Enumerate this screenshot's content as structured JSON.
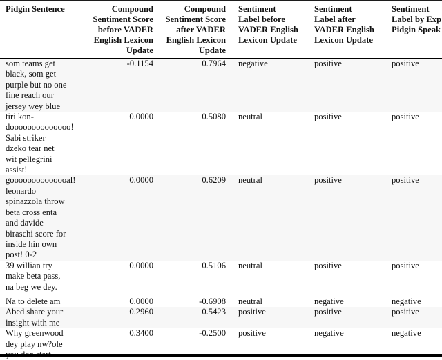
{
  "table": {
    "columns": [
      {
        "label": "Pidgin Sentence"
      },
      {
        "label": "Compound\nSentiment Score\nbefore VADER\nEnglish Lexicon\nUpdate"
      },
      {
        "label": "Compound\nSentiment Score\nafter VADER\nEnglish Lexicon\nUpdate"
      },
      {
        "label": "Sentiment\nLabel before\nVADER English\nLexicon Update"
      },
      {
        "label": "Sentiment\nLabel after\nVADER English\nLexicon Update"
      },
      {
        "label": "Sentiment\nLabel by Exp\nPidgin Speak"
      }
    ],
    "rows": [
      {
        "sentence": "som teams get\nblack, som get\npurple but no one\nfine reach our\njersey wey blue",
        "score_before": "-0.1154",
        "score_after": "0.7964",
        "label_before": "negative",
        "label_after": "positive",
        "label_expert": "positive"
      },
      {
        "sentence": "tiri kon-\ndoooooooooooooo!\nSabi striker\ndzeko tear net\nwit pellegrini\nassist!",
        "score_before": "0.0000",
        "score_after": "0.5080",
        "label_before": "neutral",
        "label_after": "positive",
        "label_expert": "positive"
      },
      {
        "sentence": "goooooooooooooal!\nleonardo\nspinazzola throw\nbeta cross enta\nand davide\nbiraschi score for\ninside hin own\npost! 0-2",
        "score_before": "0.0000",
        "score_after": "0.6209",
        "label_before": "neutral",
        "label_after": "positive",
        "label_expert": "positive"
      },
      {
        "sentence": "39 willian try\nmake beta pass,\nna beg we dey.",
        "score_before": "0.0000",
        "score_after": "0.5106",
        "label_before": "neutral",
        "label_after": "positive",
        "label_expert": "positive"
      },
      {
        "sentence": "Na to delete am",
        "score_before": "0.0000",
        "score_after": "-0.6908",
        "label_before": "neutral",
        "label_after": "negative",
        "label_expert": "negative"
      },
      {
        "sentence": "Abed share your\ninsight with me",
        "score_before": "0.2960",
        "score_after": "0.5423",
        "label_before": "positive",
        "label_after": "positive",
        "label_expert": "positive"
      },
      {
        "sentence": "Why greenwood\ndey play nw?ole\nyou don start",
        "score_before": "0.3400",
        "score_after": "-0.2500",
        "label_before": "positive",
        "label_after": "negative",
        "label_expert": "negative"
      }
    ],
    "colors": {
      "background": "#ffffff",
      "row_shading": "#f7f7f7",
      "rule": "#000000",
      "text": "#111111"
    }
  }
}
